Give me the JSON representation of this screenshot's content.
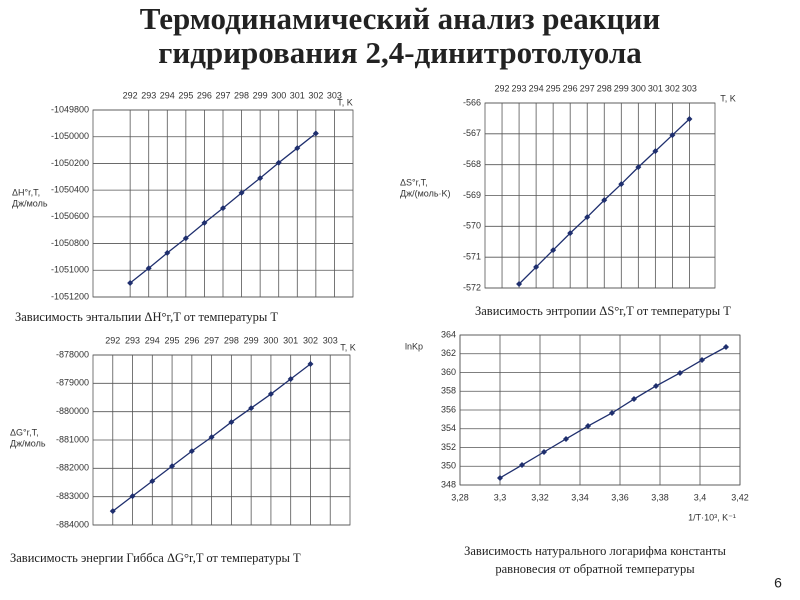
{
  "title": [
    "Термодинамический анализ реакции",
    "гидрирования 2,4-динитротолуола"
  ],
  "page_number": "6",
  "chart_data": [
    {
      "type": "line",
      "caption": [
        "Зависимость энтальпии ΔH°r,T от температуры T"
      ],
      "x_label": "T, K",
      "y_label": [
        "ΔH°r,T,",
        "Дж/моль"
      ],
      "x_axis_position": "top",
      "grid": true,
      "x": [
        292,
        293,
        294,
        295,
        296,
        297,
        298,
        299,
        300,
        301,
        302
      ],
      "color": "#1f2f6e",
      "values": [
        -1051095,
        -1050985,
        -1050870,
        -1050760,
        -1050645,
        -1050535,
        -1050420,
        -1050310,
        -1050195,
        -1050085,
        -1049975
      ],
      "xlim": [
        290,
        304
      ],
      "xticks": [
        292,
        293,
        294,
        295,
        296,
        297,
        298,
        299,
        300,
        301,
        302,
        303
      ],
      "ylim": [
        -1051200,
        -1049800
      ],
      "yticks": [
        -1051200,
        -1051000,
        -1050800,
        -1050600,
        -1050400,
        -1050200,
        -1050000,
        -1049800
      ]
    },
    {
      "type": "line",
      "caption": [
        "Зависимость энтропии ΔS°r,T от температуры T"
      ],
      "x_label": "T, K",
      "y_label": [
        "ΔS°r,T,",
        "Дж/(моль·K)"
      ],
      "x_axis_position": "top",
      "grid": true,
      "x": [
        293,
        294,
        295,
        296,
        297,
        298,
        299,
        300,
        301,
        302,
        303
      ],
      "color": "#1f2f6e",
      "values": [
        -571.87,
        -571.32,
        -570.77,
        -570.22,
        -569.7,
        -569.15,
        -568.63,
        -568.08,
        -567.56,
        -567.04,
        -566.52
      ],
      "xlim": [
        291,
        304.5
      ],
      "xticks": [
        292,
        293,
        294,
        295,
        296,
        297,
        298,
        299,
        300,
        301,
        302,
        303
      ],
      "ylim": [
        -572,
        -566
      ],
      "yticks": [
        -572,
        -571,
        -570,
        -569,
        -568,
        -567,
        -566
      ]
    },
    {
      "type": "line",
      "caption": [
        "Зависимость энергии Гиббса ΔG°r,T от температуры T"
      ],
      "x_label": "T, K",
      "y_label": [
        "ΔG°r,T,",
        "Дж/моль"
      ],
      "x_axis_position": "top",
      "grid": true,
      "x": [
        292,
        293,
        294,
        295,
        296,
        297,
        298,
        299,
        300,
        301,
        302
      ],
      "color": "#1f2f6e",
      "values": [
        -883512,
        -882982,
        -882452,
        -881922,
        -881392,
        -880898,
        -880367,
        -879873,
        -879378,
        -878848,
        -878318
      ],
      "xlim": [
        291,
        304
      ],
      "xticks": [
        292,
        293,
        294,
        295,
        296,
        297,
        298,
        299,
        300,
        301,
        302,
        303
      ],
      "ylim": [
        -884000,
        -878000
      ],
      "yticks": [
        -884000,
        -883000,
        -882000,
        -881000,
        -880000,
        -879000,
        -878000
      ]
    },
    {
      "type": "line",
      "caption": [
        "Зависимость натурального логарифма константы",
        "равновесия  от обратной температуры"
      ],
      "x_label": "1/T·10³, K⁻¹",
      "y_label": [
        "lnKp"
      ],
      "x_axis_position": "bottom",
      "grid": true,
      "x": [
        3.3,
        3.311,
        3.322,
        3.333,
        3.344,
        3.356,
        3.367,
        3.378,
        3.39,
        3.401,
        3.413
      ],
      "color": "#1f2f6e",
      "values": [
        348.75,
        350.13,
        351.52,
        352.91,
        354.29,
        355.68,
        357.17,
        358.56,
        359.95,
        361.33,
        362.72
      ],
      "xlim": [
        3.28,
        3.42
      ],
      "xticks": [
        {
          "value": 3.28,
          "label": "3,28"
        },
        {
          "value": 3.3,
          "label": "3,3"
        },
        {
          "value": 3.32,
          "label": "3,32"
        },
        {
          "value": 3.34,
          "label": "3,34"
        },
        {
          "value": 3.36,
          "label": "3,36"
        },
        {
          "value": 3.38,
          "label": "3,38"
        },
        {
          "value": 3.4,
          "label": "3,4"
        },
        {
          "value": 3.42,
          "label": "3,42"
        }
      ],
      "ylim": [
        348,
        364
      ],
      "yticks": [
        348,
        350,
        352,
        354,
        356,
        358,
        360,
        362,
        364
      ]
    }
  ]
}
